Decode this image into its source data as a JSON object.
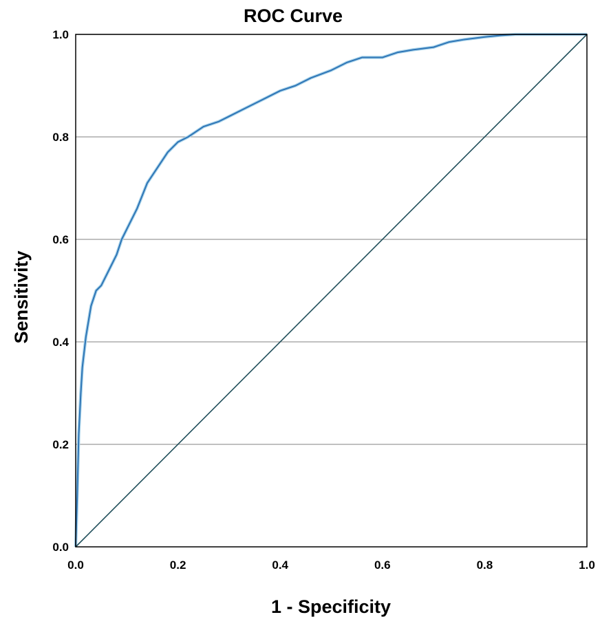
{
  "chart_data": {
    "type": "line",
    "title": "ROC Curve",
    "xlabel": "1 - Specificity",
    "ylabel": "Sensitivity",
    "xlim": [
      0.0,
      1.0
    ],
    "ylim": [
      0.0,
      1.0
    ],
    "xticks": [
      "0.0",
      "0.2",
      "0.4",
      "0.6",
      "0.8",
      "1.0"
    ],
    "yticks": [
      "0.0",
      "0.2",
      "0.4",
      "0.6",
      "0.8",
      "1.0"
    ],
    "grid": "horizontal",
    "legend": "none",
    "series": [
      {
        "color": "#2e75b6",
        "x": [
          0.0,
          0.003,
          0.006,
          0.01,
          0.013,
          0.02,
          0.025,
          0.03,
          0.04,
          0.05,
          0.06,
          0.07,
          0.08,
          0.09,
          0.1,
          0.12,
          0.14,
          0.16,
          0.18,
          0.2,
          0.22,
          0.25,
          0.28,
          0.3,
          0.33,
          0.36,
          0.4,
          0.43,
          0.46,
          0.5,
          0.53,
          0.56,
          0.6,
          0.63,
          0.66,
          0.7,
          0.73,
          0.76,
          0.8,
          0.83,
          0.86,
          0.9,
          0.95,
          1.0
        ],
        "y": [
          0.0,
          0.1,
          0.22,
          0.3,
          0.35,
          0.41,
          0.44,
          0.47,
          0.5,
          0.51,
          0.53,
          0.55,
          0.57,
          0.6,
          0.62,
          0.66,
          0.71,
          0.74,
          0.77,
          0.79,
          0.8,
          0.82,
          0.83,
          0.84,
          0.855,
          0.87,
          0.89,
          0.9,
          0.915,
          0.93,
          0.945,
          0.955,
          0.955,
          0.965,
          0.97,
          0.975,
          0.985,
          0.99,
          0.995,
          0.998,
          1.0,
          1.0,
          1.0,
          1.0
        ]
      },
      {
        "color": "#1f4e5a",
        "x": [
          0.0,
          1.0
        ],
        "y": [
          0.0,
          1.0
        ]
      }
    ]
  }
}
